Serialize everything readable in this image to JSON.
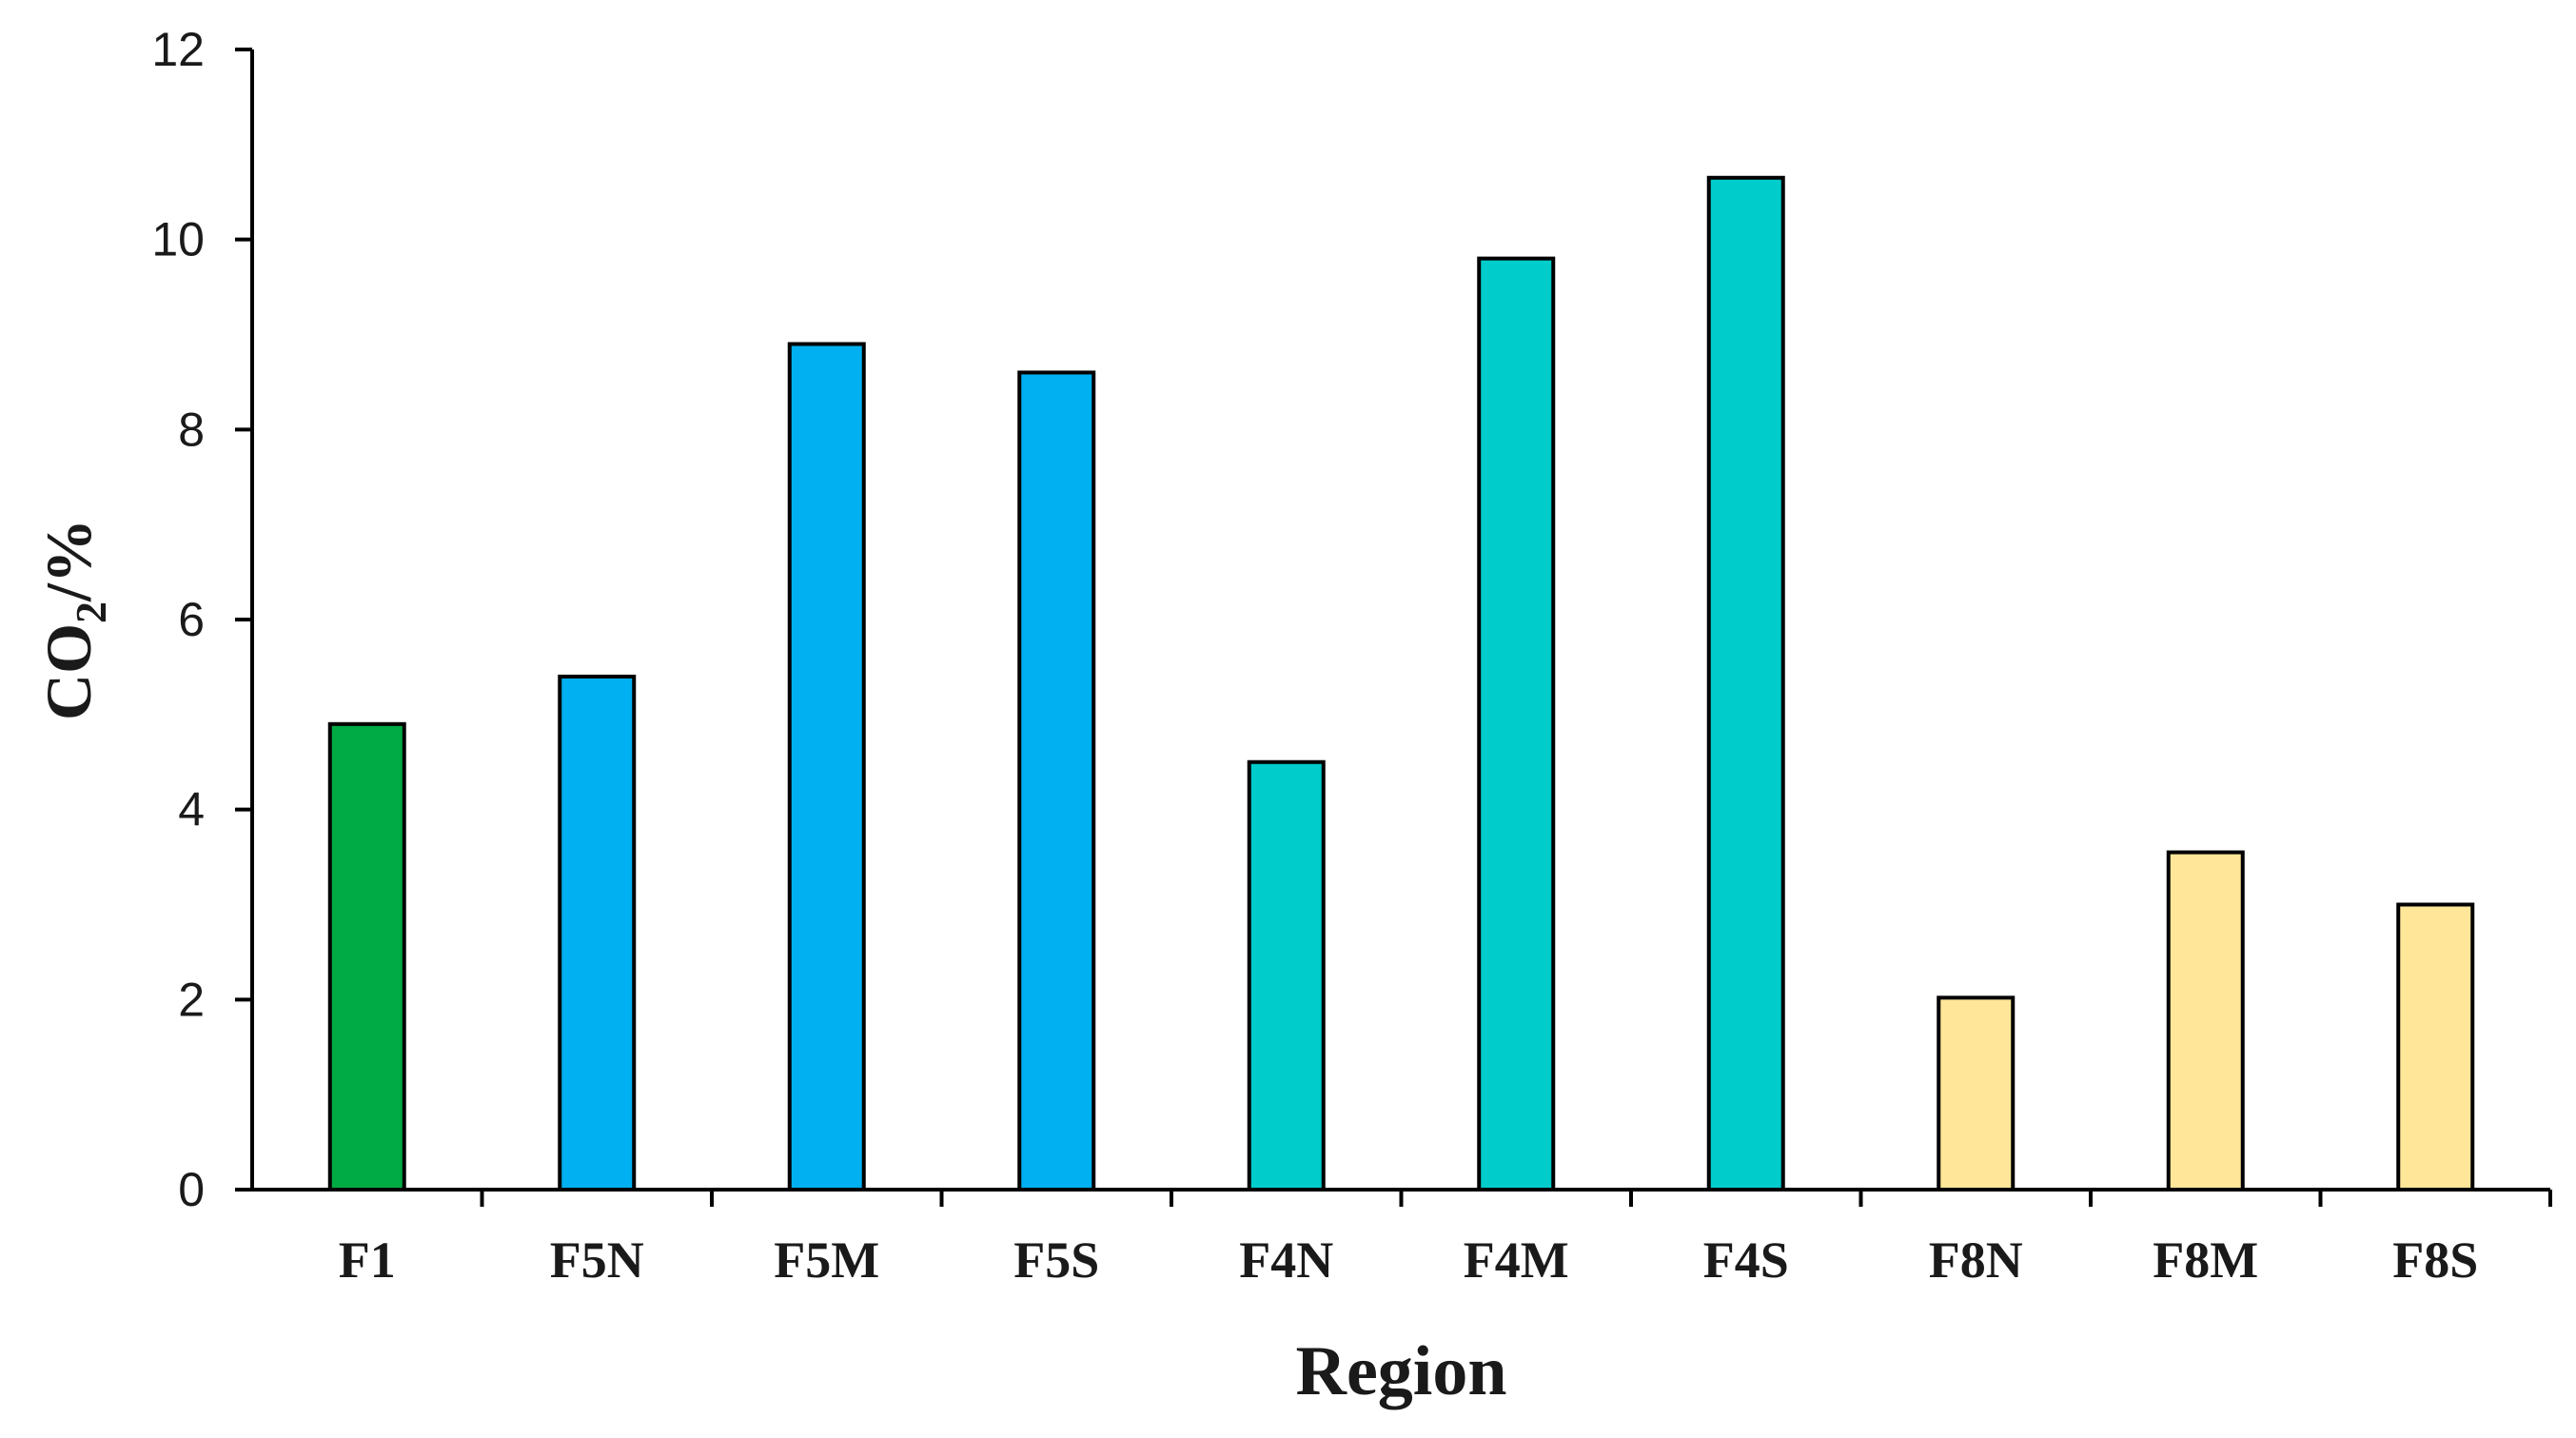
{
  "chart_data": {
    "type": "bar",
    "categories": [
      "F1",
      "F5N",
      "F5M",
      "F5S",
      "F4N",
      "F4M",
      "F4S",
      "F8N",
      "F8M",
      "F8S"
    ],
    "values": [
      4.9,
      5.4,
      8.9,
      8.6,
      4.5,
      9.8,
      10.65,
      2.02,
      3.55,
      3.0
    ],
    "bar_colors": [
      "#00AA44",
      "#00B0F0",
      "#00B0F0",
      "#00B0F0",
      "#00CCCC",
      "#00CCCC",
      "#00CCCC",
      "#FFE699",
      "#FFE699",
      "#FFE699"
    ],
    "bar_outline_color": "#000000",
    "title": "",
    "xlabel": "Region",
    "ylabel": {
      "main": "CO",
      "subscript": "2",
      "rest": "/%"
    },
    "ylim": [
      0,
      12
    ],
    "yticks": [
      "0",
      "2",
      "4",
      "6",
      "8",
      "10",
      "12"
    ],
    "grid": false,
    "legend": "none"
  }
}
